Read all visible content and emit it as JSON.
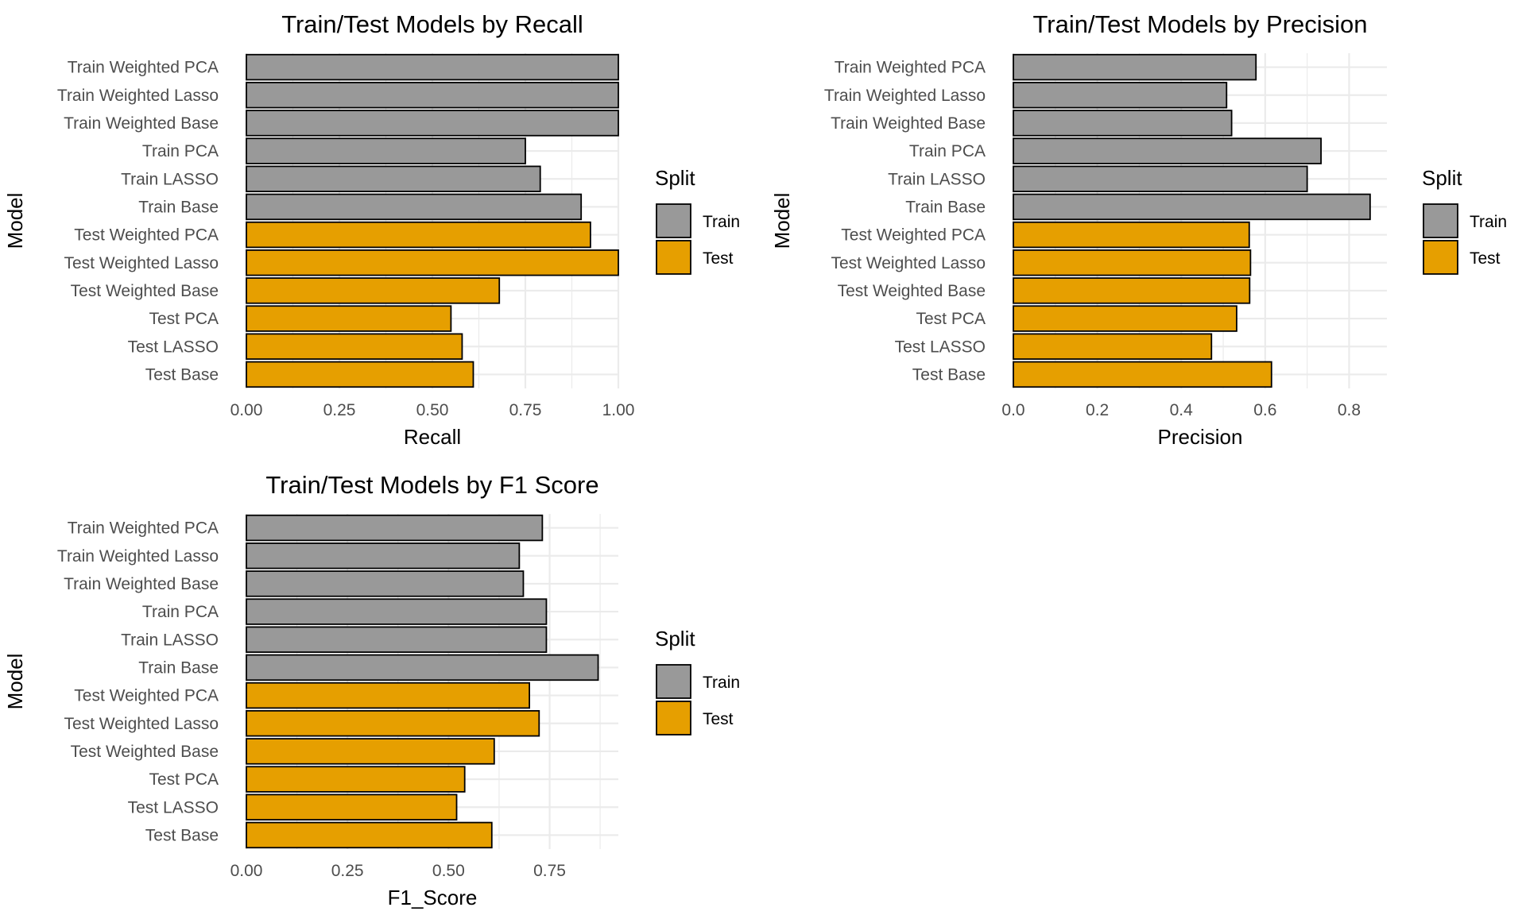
{
  "colors": {
    "train": "#999999",
    "test": "#E69F00",
    "bar_outline": "#000000",
    "grid": "#EBEBEB",
    "text": "#000000",
    "tick_text": "#4D4D4D"
  },
  "legend": {
    "title": "Split",
    "items": [
      {
        "label": "Train",
        "split": "Train"
      },
      {
        "label": "Test",
        "split": "Test"
      }
    ]
  },
  "chart_data": [
    {
      "type": "bar",
      "orientation": "horizontal",
      "title": "Train/Test Models by Recall",
      "xlabel": "Recall",
      "ylabel": "Model",
      "xlim": [
        0,
        1.0
      ],
      "xticks": [
        0,
        0.25,
        0.5,
        0.75,
        1.0
      ],
      "xtick_labels": [
        "0.00",
        "0.25",
        "0.50",
        "0.75",
        "1.00"
      ],
      "grid": true,
      "legend_position": "right",
      "categories": [
        "Train Weighted PCA",
        "Train Weighted Lasso",
        "Train Weighted Base",
        "Train PCA",
        "Train LASSO",
        "Train Base",
        "Test Weighted PCA",
        "Test Weighted Lasso",
        "Test Weighted Base",
        "Test PCA",
        "Test LASSO",
        "Test Base"
      ],
      "splits": [
        "Train",
        "Train",
        "Train",
        "Train",
        "Train",
        "Train",
        "Test",
        "Test",
        "Test",
        "Test",
        "Test",
        "Test"
      ],
      "values": [
        1.0,
        1.0,
        1.0,
        0.75,
        0.79,
        0.9,
        0.925,
        1.0,
        0.68,
        0.55,
        0.58,
        0.61
      ]
    },
    {
      "type": "bar",
      "orientation": "horizontal",
      "title": "Train/Test Models by Precision",
      "xlabel": "Precision",
      "ylabel": "Model",
      "xlim": [
        0,
        0.89
      ],
      "xticks": [
        0,
        0.2,
        0.4,
        0.6,
        0.8
      ],
      "xtick_labels": [
        "0.0",
        "0.2",
        "0.4",
        "0.6",
        "0.8"
      ],
      "grid": true,
      "legend_position": "right",
      "categories": [
        "Train Weighted PCA",
        "Train Weighted Lasso",
        "Train Weighted Base",
        "Train PCA",
        "Train LASSO",
        "Train Base",
        "Test Weighted PCA",
        "Test Weighted Lasso",
        "Test Weighted Base",
        "Test PCA",
        "Test LASSO",
        "Test Base"
      ],
      "splits": [
        "Train",
        "Train",
        "Train",
        "Train",
        "Train",
        "Train",
        "Test",
        "Test",
        "Test",
        "Test",
        "Test",
        "Test"
      ],
      "values": [
        0.578,
        0.508,
        0.52,
        0.733,
        0.7,
        0.85,
        0.562,
        0.565,
        0.563,
        0.532,
        0.472,
        0.615
      ]
    },
    {
      "type": "bar",
      "orientation": "horizontal",
      "title": "Train/Test Models by F1 Score",
      "xlabel": "F1_Score",
      "ylabel": "Model",
      "xlim": [
        0,
        0.92
      ],
      "xticks": [
        0,
        0.25,
        0.5,
        0.75
      ],
      "xtick_labels": [
        "0.00",
        "0.25",
        "0.50",
        "0.75"
      ],
      "grid": true,
      "legend_position": "right",
      "categories": [
        "Train Weighted PCA",
        "Train Weighted Lasso",
        "Train Weighted Base",
        "Train PCA",
        "Train LASSO",
        "Train Base",
        "Test Weighted PCA",
        "Test Weighted Lasso",
        "Test Weighted Base",
        "Test PCA",
        "Test LASSO",
        "Test Base"
      ],
      "splits": [
        "Train",
        "Train",
        "Train",
        "Train",
        "Train",
        "Train",
        "Test",
        "Test",
        "Test",
        "Test",
        "Test",
        "Test"
      ],
      "values": [
        0.732,
        0.675,
        0.685,
        0.742,
        0.742,
        0.87,
        0.7,
        0.724,
        0.613,
        0.54,
        0.52,
        0.607
      ]
    }
  ]
}
